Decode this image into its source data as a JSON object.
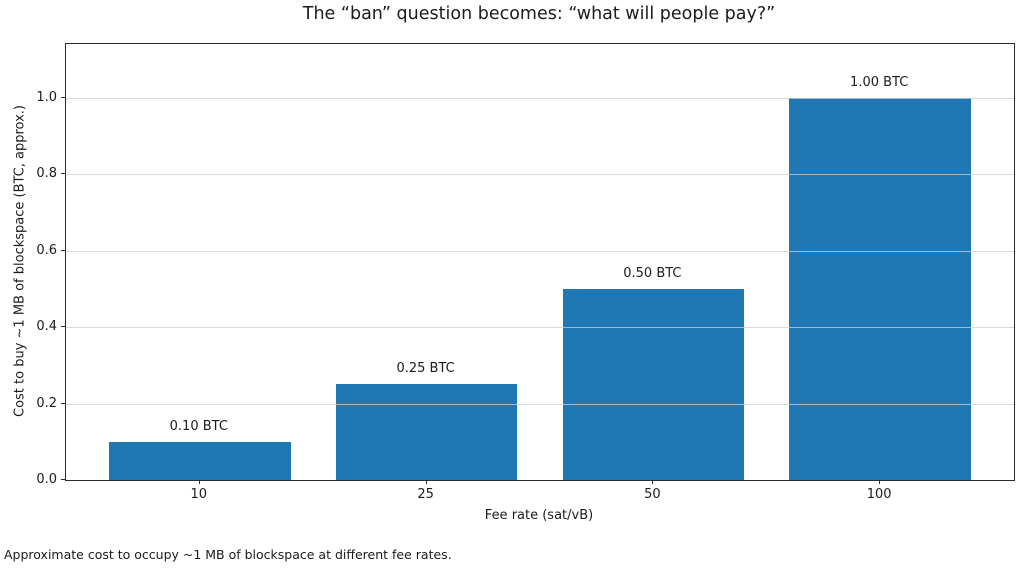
{
  "caption": "Approximate cost to occupy ~1 MB of blockspace at different fee rates.",
  "colors": {
    "bar": "#1f77b4",
    "grid": "#cdcdcd",
    "text": "#1c1c1c"
  },
  "chart_data": {
    "type": "bar",
    "title": "The “ban” question becomes: “what will people pay?”",
    "categories": [
      "10",
      "25",
      "50",
      "100"
    ],
    "values": [
      0.1,
      0.25,
      0.5,
      1.0
    ],
    "bar_labels": [
      "0.10 BTC",
      "0.25 BTC",
      "0.50 BTC",
      "1.00 BTC"
    ],
    "xlabel": "Fee rate (sat/vB)",
    "ylabel": "Cost to buy ~1 MB of blockspace (BTC, approx.)",
    "ytick_labels": [
      "0.0",
      "0.2",
      "0.4",
      "0.6",
      "0.8",
      "1.0"
    ],
    "yticks": [
      0.0,
      0.2,
      0.4,
      0.6,
      0.8,
      1.0
    ],
    "ylim": [
      0,
      1.14
    ],
    "grid": "horizontal-light-gray-over-bars",
    "legend": "none"
  }
}
